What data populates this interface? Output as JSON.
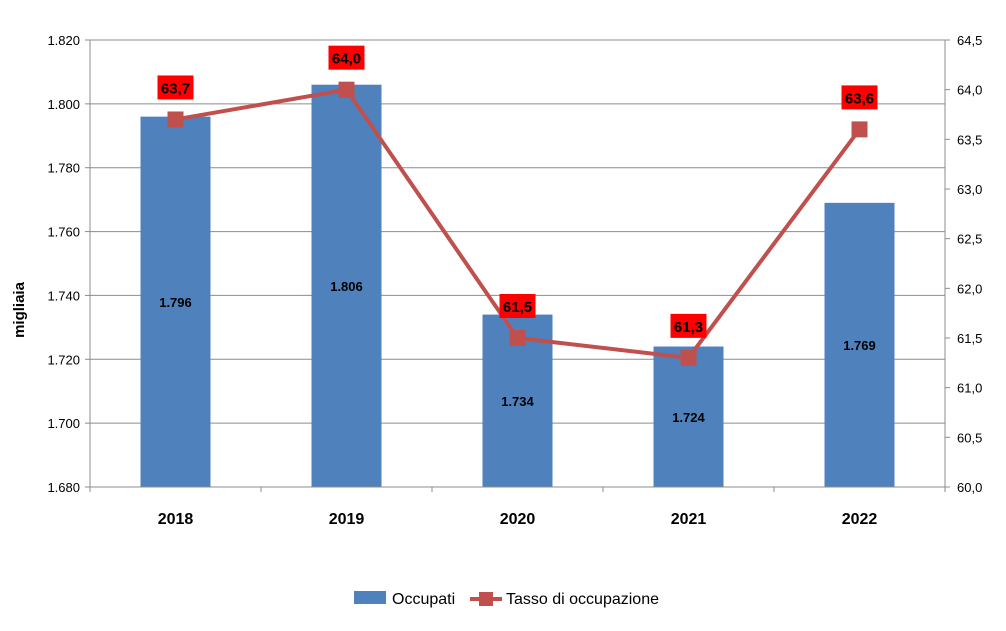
{
  "chart_data": {
    "type": "bar",
    "categories": [
      "2018",
      "2019",
      "2020",
      "2021",
      "2022"
    ],
    "series": [
      {
        "name": "Occupati",
        "type": "bar",
        "axis": "left",
        "values": [
          1796,
          1806,
          1734,
          1724,
          1769
        ],
        "labels": [
          "1.796",
          "1.806",
          "1.734",
          "1.724",
          "1.769"
        ],
        "color": "#4F81BD"
      },
      {
        "name": "Tasso di occupazione",
        "type": "line",
        "axis": "right",
        "values": [
          63.7,
          64.0,
          61.5,
          61.3,
          63.6
        ],
        "labels": [
          "63,7",
          "64,0",
          "61,5",
          "61,3",
          "63,6"
        ],
        "color": "#C0504D",
        "label_background": "#FF0000"
      }
    ],
    "ylabel": "migliaia",
    "ylim": [
      1680,
      1820
    ],
    "y_ticks": [
      1680,
      1700,
      1720,
      1740,
      1760,
      1780,
      1800,
      1820
    ],
    "y_tick_labels": [
      "1.680",
      "1.700",
      "1.720",
      "1.740",
      "1.760",
      "1.780",
      "1.800",
      "1.820"
    ],
    "y2lim": [
      60.0,
      64.5
    ],
    "y2_ticks": [
      60.0,
      60.5,
      61.0,
      61.5,
      62.0,
      62.5,
      63.0,
      63.5,
      64.0,
      64.5
    ],
    "y2_tick_labels": [
      "60,0",
      "60,5",
      "61,0",
      "61,5",
      "62,0",
      "62,5",
      "63,0",
      "63,5",
      "64,0",
      "64,5"
    ],
    "grid": true,
    "legend_position": "bottom"
  }
}
